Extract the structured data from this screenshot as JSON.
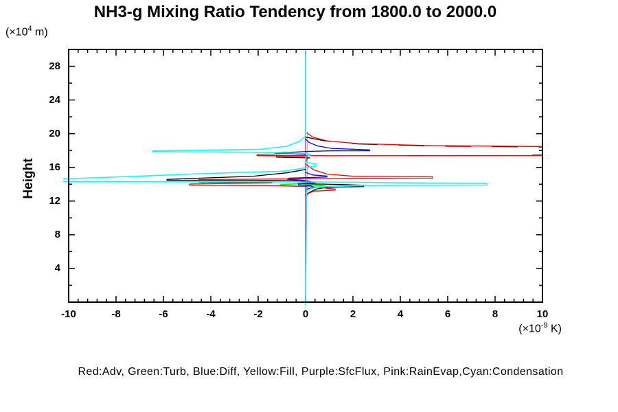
{
  "title": "NH3-g Mixing Ratio Tendency from 1800.0 to 2000.0",
  "y_axis_label": "Height",
  "y_unit": {
    "prefix": "(×10",
    "exponent": "4",
    "suffix": " m)"
  },
  "x_unit": {
    "prefix": "(×10",
    "exponent": "-9",
    "suffix": " K)"
  },
  "legend": "Red:Adv, Green:Turb, Blue:Diff, Yellow:Fill, Purple:SfcFlux, Pink:RainEvap,Cyan:Condensation",
  "colors": {
    "background": "#ffffff",
    "frame": "#000000",
    "adv_red": "#ff0000",
    "turb_green": "#00ff00",
    "diff_blue": "#0000ff",
    "fill_yellow": "#ffff00",
    "sfcflux_purple": "#a020f0",
    "rainevap_pink": "#ff9e9e",
    "condensation_cyan": "#00ffff",
    "total_black": "#000000"
  },
  "chart_data": {
    "type": "line",
    "title": "NH3-g Mixing Ratio Tendency from 1800.0 to 2000.0",
    "xlabel": "(×10^-9 K)",
    "ylabel": "Height (×10^4 m)",
    "xlim": [
      -10,
      10
    ],
    "ylim": [
      0,
      30
    ],
    "x_major_ticks": [
      -10,
      -8,
      -6,
      -4,
      -2,
      0,
      2,
      4,
      6,
      8,
      10
    ],
    "y_major_ticks": [
      4,
      8,
      12,
      16,
      20,
      24,
      28
    ],
    "x_minor_step": 0.4,
    "y_minor_step": 2,
    "grid": false,
    "legend_position": "bottom",
    "series": [
      {
        "name": "Fill",
        "color": "#ffff00",
        "lines": [
          {
            "pts": [
              [
                0,
                30
              ],
              [
                0,
                0
              ]
            ]
          }
        ]
      },
      {
        "name": "SfcFlux",
        "color": "#a020f0",
        "lines": [
          {
            "pts": [
              [
                0,
                30
              ],
              [
                0,
                0
              ]
            ]
          }
        ]
      },
      {
        "name": "RainEvap",
        "color": "#ff9e9e",
        "lines": [
          {
            "pts": [
              [
                0.07,
                20.3
              ],
              [
                0.07,
                12.5
              ]
            ]
          }
        ]
      },
      {
        "name": "Total-overlap-dashes",
        "color": "#000000",
        "lines": [
          {
            "pts": [
              [
                0,
                19.6
              ],
              [
                0.8,
                19.15
              ],
              [
                2.2,
                18.78
              ],
              [
                5,
                18.55
              ],
              [
                10.5,
                18.4
              ]
            ],
            "dash": "38 30"
          },
          {
            "pts": [
              [
                10.5,
                17.46
              ],
              [
                0.3,
                17.34
              ]
            ],
            "dash": "32 150"
          }
        ]
      },
      {
        "name": "Total",
        "color": "#000000",
        "lines": [
          {
            "pts": [
              [
                -1.25,
                17.22
              ],
              [
                0.2,
                17.12
              ]
            ]
          },
          {
            "pts": [
              [
                0,
                15.75
              ],
              [
                -0.8,
                15.35
              ],
              [
                -2.2,
                14.95
              ],
              [
                -5.85,
                14.58
              ],
              [
                -5.85,
                14.47
              ],
              [
                -2.5,
                14.47
              ],
              [
                -0.4,
                14.42
              ],
              [
                0.45,
                14.22
              ],
              [
                -0.35,
                14.07
              ],
              [
                1.3,
                13.98
              ],
              [
                2.45,
                13.88
              ],
              [
                2.45,
                13.72
              ],
              [
                0.9,
                13.62
              ],
              [
                0.45,
                13.42
              ],
              [
                0.18,
                13.05
              ],
              [
                0,
                12.72
              ]
            ]
          }
        ]
      },
      {
        "name": "Adv",
        "color": "#ff0000",
        "lines": [
          {
            "pts": [
              [
                0.05,
                20.1
              ],
              [
                0.3,
                19.6
              ],
              [
                0.9,
                19.15
              ],
              [
                2.2,
                18.82
              ],
              [
                5,
                18.6
              ],
              [
                10.5,
                18.46
              ]
            ]
          },
          {
            "pts": [
              [
                10.5,
                17.4
              ],
              [
                1,
                17.38
              ],
              [
                -0.8,
                17.42
              ],
              [
                -2.05,
                17.5
              ],
              [
                -2.05,
                17.4
              ],
              [
                -0.5,
                17.32
              ],
              [
                0.1,
                17.22
              ],
              [
                0.05,
                16.9
              ],
              [
                0,
                16.6
              ]
            ]
          },
          {
            "pts": [
              [
                0,
                16.4
              ],
              [
                0.35,
                15.7
              ],
              [
                0.9,
                15.2
              ],
              [
                2,
                14.95
              ],
              [
                5.35,
                14.88
              ],
              [
                5.35,
                14.72
              ],
              [
                1.2,
                14.68
              ],
              [
                -1.2,
                14.62
              ],
              [
                -4.5,
                14.55
              ],
              [
                -4.5,
                14.25
              ],
              [
                -1.4,
                14.18
              ],
              [
                -4.9,
                14.02
              ],
              [
                -4.9,
                13.88
              ],
              [
                -1.2,
                13.82
              ],
              [
                0.2,
                13.7
              ],
              [
                1.25,
                13.42
              ],
              [
                1.25,
                13.3
              ],
              [
                0.35,
                13.18
              ],
              [
                0.12,
                12.9
              ],
              [
                0,
                12.55
              ]
            ]
          }
        ]
      },
      {
        "name": "Turb",
        "color": "#00ff00",
        "lines": [
          {
            "pts": [
              [
                0,
                14.7
              ],
              [
                0.03,
                14.1
              ],
              [
                -1.05,
                13.98
              ],
              [
                -1.05,
                13.9
              ],
              [
                0.55,
                13.92
              ],
              [
                0.85,
                13.86
              ],
              [
                0.1,
                13.72
              ],
              [
                0.05,
                13.5
              ],
              [
                0,
                13.3
              ]
            ]
          }
        ]
      },
      {
        "name": "Diff",
        "color": "#0000ff",
        "lines": [
          {
            "pts": [
              [
                0,
                19.35
              ],
              [
                0.15,
                18.95
              ],
              [
                0.5,
                18.55
              ],
              [
                1.1,
                18.25
              ],
              [
                2.7,
                18.08
              ],
              [
                2.7,
                17.97
              ],
              [
                1.0,
                17.96
              ],
              [
                0.2,
                17.9
              ],
              [
                -0.6,
                17.8
              ],
              [
                -1.3,
                17.76
              ],
              [
                -1.3,
                17.68
              ],
              [
                -0.5,
                17.64
              ],
              [
                -0.05,
                17.55
              ],
              [
                0,
                17.4
              ]
            ]
          },
          {
            "pts": [
              [
                0,
                15.4
              ],
              [
                0.3,
                15.1
              ],
              [
                0.9,
                14.97
              ],
              [
                0.9,
                14.86
              ],
              [
                0.2,
                14.8
              ],
              [
                -0.7,
                14.72
              ],
              [
                -0.75,
                14.56
              ],
              [
                -0.2,
                14.5
              ],
              [
                0.2,
                14.32
              ],
              [
                0.3,
                14.15
              ],
              [
                -0.3,
                14.02
              ],
              [
                -0.3,
                13.9
              ],
              [
                0.25,
                13.8
              ],
              [
                0.35,
                13.6
              ],
              [
                0.1,
                13.45
              ],
              [
                0,
                13.2
              ]
            ]
          }
        ]
      },
      {
        "name": "Condensation",
        "color": "#00ffff",
        "width": 1.5,
        "lines": [
          {
            "pts": [
              [
                0,
                30
              ],
              [
                0,
                19.7
              ],
              [
                -0.25,
                19.1
              ],
              [
                -0.8,
                18.5
              ],
              [
                -1.9,
                18.15
              ],
              [
                -6.45,
                17.95
              ],
              [
                -6.45,
                17.85
              ],
              [
                -2.2,
                17.8
              ],
              [
                -0.6,
                17.7
              ],
              [
                0.15,
                17.6
              ],
              [
                0.2,
                17.45
              ],
              [
                0,
                17.3
              ],
              [
                0,
                16.6
              ],
              [
                0.45,
                16.4
              ],
              [
                0.45,
                16.15
              ],
              [
                0,
                15.95
              ],
              [
                -0.9,
                15.55
              ],
              [
                -4.35,
                15.25
              ],
              [
                -8,
                14.85
              ],
              [
                -10.6,
                14.6
              ],
              [
                -10.6,
                14.32
              ],
              [
                -3,
                14.3
              ],
              [
                1.5,
                14.25
              ],
              [
                7.65,
                14.08
              ],
              [
                7.65,
                13.9
              ],
              [
                1.4,
                13.84
              ],
              [
                0.35,
                13.6
              ],
              [
                0.05,
                13.3
              ],
              [
                0,
                -0.4
              ]
            ]
          }
        ]
      }
    ]
  }
}
